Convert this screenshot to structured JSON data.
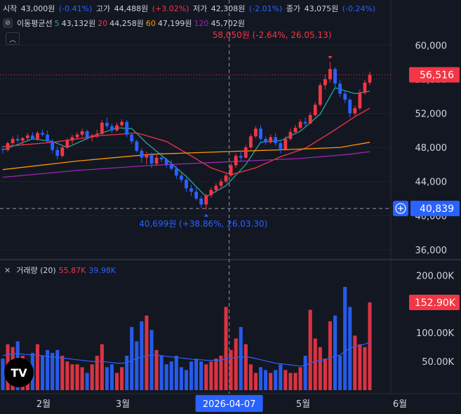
{
  "ohlc_legend": {
    "open_label": "시작",
    "open_value": "43,000원",
    "open_change": "(-0.41%)",
    "high_label": "고가",
    "high_value": "44,488원",
    "high_change": "(+3.02%)",
    "low_label": "저가",
    "low_value": "42,308원",
    "low_change": "(-2.01%)",
    "close_label": "종가",
    "close_value": "43,075원",
    "close_change": "(-0.24%)"
  },
  "ma_legend": {
    "icon": "eye-off-icon",
    "title": "이동평균선",
    "items": [
      {
        "period": "5",
        "value": "43,132원",
        "color": "#26a69a"
      },
      {
        "period": "20",
        "value": "44,258원",
        "color": "#f23645"
      },
      {
        "period": "60",
        "value": "47,199원",
        "color": "#ff9800"
      },
      {
        "period": "120",
        "value": "45,702원",
        "color": "#9c27b0"
      }
    ]
  },
  "volume_legend": {
    "title": "거래량 (20)",
    "value1": "55.87K",
    "value2": "39.98K"
  },
  "tv_logo": "TV",
  "chart_data": [
    {
      "type": "candlestick",
      "ylim": [
        35000,
        62000
      ],
      "y_ticks": [
        "60,000",
        "56,000",
        "52,000",
        "48,000",
        "44,000",
        "40,000",
        "36,000"
      ],
      "y_tick_values": [
        60000,
        56000,
        52000,
        48000,
        44000,
        40000,
        36000
      ],
      "x_ticks": [
        "2월",
        "3월",
        "5월",
        "6월"
      ],
      "crosshair_date": "2026-04-07",
      "crosshair_price": "40,839",
      "last_price": "56,516",
      "high_annotation": "58,050원 (-2.64%, 26.05.13)",
      "low_annotation": "40,699원 (+38.86%, 26.03.30)",
      "colors": {
        "up": "#f23645",
        "down": "#2962ff"
      },
      "candles": [
        [
          47800,
          48200,
          47300,
          47700
        ],
        [
          47700,
          48700,
          47500,
          48500
        ],
        [
          48500,
          49300,
          48200,
          49000
        ],
        [
          49000,
          49500,
          48600,
          48800
        ],
        [
          48800,
          49200,
          48300,
          49100
        ],
        [
          49100,
          49700,
          48700,
          49400
        ],
        [
          49400,
          49800,
          48900,
          49000
        ],
        [
          49000,
          49900,
          48800,
          49700
        ],
        [
          49700,
          50100,
          49300,
          49500
        ],
        [
          49500,
          50000,
          48500,
          48700
        ],
        [
          48700,
          49000,
          47300,
          47700
        ],
        [
          47700,
          48100,
          46600,
          47000
        ],
        [
          47000,
          48300,
          46800,
          48000
        ],
        [
          48000,
          49100,
          47800,
          48800
        ],
        [
          48800,
          49500,
          48400,
          49200
        ],
        [
          49200,
          49800,
          48900,
          49500
        ],
        [
          49500,
          50200,
          49200,
          49900
        ],
        [
          49900,
          50100,
          48900,
          49200
        ],
        [
          49200,
          49600,
          48700,
          49400
        ],
        [
          49400,
          50100,
          49100,
          49600
        ],
        [
          49600,
          51200,
          49400,
          50900
        ],
        [
          50900,
          51500,
          50200,
          50500
        ],
        [
          50500,
          50800,
          49700,
          50000
        ],
        [
          50000,
          50900,
          49800,
          50600
        ],
        [
          50600,
          51300,
          50400,
          51000
        ],
        [
          51000,
          51200,
          49200,
          49500
        ],
        [
          49500,
          49700,
          48400,
          48700
        ],
        [
          48700,
          48900,
          47400,
          47600
        ],
        [
          47600,
          47900,
          46200,
          46800
        ],
        [
          46800,
          47500,
          46000,
          47200
        ],
        [
          47200,
          47400,
          45600,
          46100
        ],
        [
          46100,
          47100,
          45800,
          46800
        ],
        [
          46800,
          47400,
          46300,
          46600
        ],
        [
          46600,
          46800,
          45600,
          46000
        ],
        [
          46000,
          46500,
          45300,
          45500
        ],
        [
          45500,
          45800,
          44300,
          44700
        ],
        [
          44700,
          45100,
          43900,
          44200
        ],
        [
          44200,
          44400,
          42800,
          43200
        ],
        [
          43200,
          43600,
          42300,
          42800
        ],
        [
          42800,
          43300,
          41800,
          42000
        ],
        [
          42000,
          42300,
          40900,
          41300
        ],
        [
          41300,
          42600,
          40699,
          42400
        ],
        [
          42400,
          43300,
          42100,
          43000
        ],
        [
          43000,
          43800,
          42700,
          43500
        ],
        [
          43500,
          44300,
          43100,
          44000
        ],
        [
          44000,
          44900,
          43800,
          44700
        ],
        [
          44700,
          46200,
          44500,
          45900
        ],
        [
          45900,
          47300,
          45600,
          47000
        ],
        [
          47000,
          47600,
          46400,
          46800
        ],
        [
          46800,
          48300,
          46700,
          48000
        ],
        [
          48000,
          49600,
          47800,
          49300
        ],
        [
          49300,
          50500,
          49100,
          50200
        ],
        [
          50200,
          50600,
          48800,
          49000
        ],
        [
          49000,
          49300,
          48300,
          48600
        ],
        [
          48600,
          49500,
          48400,
          49200
        ],
        [
          49200,
          49700,
          48200,
          48500
        ],
        [
          48500,
          48800,
          47300,
          47800
        ],
        [
          47800,
          49300,
          47600,
          49000
        ],
        [
          49000,
          50200,
          48800,
          49800
        ],
        [
          49800,
          50600,
          49600,
          50300
        ],
        [
          50300,
          51300,
          50100,
          51000
        ],
        [
          51000,
          51500,
          50400,
          50800
        ],
        [
          50800,
          52100,
          50700,
          51800
        ],
        [
          51800,
          53300,
          51600,
          53000
        ],
        [
          53000,
          55600,
          52800,
          55300
        ],
        [
          55300,
          56500,
          54800,
          56000
        ],
        [
          56000,
          58050,
          55600,
          57200
        ],
        [
          57200,
          57400,
          55100,
          55500
        ],
        [
          55500,
          55900,
          53900,
          54300
        ],
        [
          54300,
          54700,
          53200,
          53600
        ],
        [
          53600,
          53800,
          51500,
          52000
        ],
        [
          52000,
          52900,
          51700,
          52600
        ],
        [
          52600,
          54800,
          52400,
          54400
        ],
        [
          54400,
          55900,
          54200,
          55600
        ],
        [
          55600,
          56900,
          55300,
          56516
        ]
      ],
      "ma_series": [
        {
          "period": "5",
          "color": "#26a69a",
          "values": [
            [
              0,
              47700
            ],
            [
              6,
              49000
            ],
            [
              10,
              48700
            ],
            [
              13,
              48000
            ],
            [
              18,
              49300
            ],
            [
              23,
              50300
            ],
            [
              26,
              50200
            ],
            [
              29,
              48500
            ],
            [
              33,
              46600
            ],
            [
              37,
              44600
            ],
            [
              41,
              42200
            ],
            [
              45,
              43500
            ],
            [
              49,
              46000
            ],
            [
              52,
              48600
            ],
            [
              56,
              48800
            ],
            [
              60,
              49900
            ],
            [
              64,
              51900
            ],
            [
              67,
              55000
            ],
            [
              71,
              54300
            ],
            [
              74,
              54600
            ]
          ]
        },
        {
          "period": "20",
          "color": "#f23645",
          "values": [
            [
              0,
              48100
            ],
            [
              10,
              48600
            ],
            [
              20,
              49400
            ],
            [
              27,
              49700
            ],
            [
              33,
              48700
            ],
            [
              38,
              47000
            ],
            [
              42,
              45600
            ],
            [
              46,
              44800
            ],
            [
              51,
              45600
            ],
            [
              56,
              46900
            ],
            [
              61,
              47900
            ],
            [
              66,
              49700
            ],
            [
              71,
              51600
            ],
            [
              74,
              52600
            ]
          ]
        },
        {
          "period": "60",
          "color": "#ff9800",
          "values": [
            [
              0,
              45400
            ],
            [
              15,
              46400
            ],
            [
              30,
              47200
            ],
            [
              45,
              47500
            ],
            [
              60,
              47800
            ],
            [
              68,
              48000
            ],
            [
              74,
              48600
            ]
          ]
        },
        {
          "period": "120",
          "color": "#9c27b0",
          "values": [
            [
              0,
              44500
            ],
            [
              15,
              45300
            ],
            [
              30,
              45900
            ],
            [
              45,
              46300
            ],
            [
              60,
              46700
            ],
            [
              70,
              47200
            ],
            [
              74,
              47500
            ]
          ]
        }
      ]
    },
    {
      "type": "bar",
      "title": "거래량 (20)",
      "ylim": [
        0,
        225000
      ],
      "y_ticks": [
        "200.00K",
        "100.00K",
        "50.00K"
      ],
      "y_tick_values": [
        200000,
        100000,
        50000
      ],
      "last_value": "152.90K",
      "values": [
        55000,
        80000,
        75000,
        85000,
        60000,
        50000,
        65000,
        80000,
        60000,
        70000,
        65000,
        70000,
        60000,
        50000,
        45000,
        45000,
        40000,
        30000,
        45000,
        60000,
        80000,
        40000,
        45000,
        30000,
        40000,
        60000,
        110000,
        85000,
        120000,
        130000,
        105000,
        70000,
        60000,
        45000,
        50000,
        60000,
        40000,
        35000,
        50000,
        55000,
        50000,
        45000,
        50000,
        55000,
        60000,
        145000,
        70000,
        90000,
        110000,
        80000,
        45000,
        30000,
        40000,
        35000,
        30000,
        35000,
        45000,
        35000,
        30000,
        30000,
        40000,
        60000,
        140000,
        90000,
        75000,
        55000,
        120000,
        130000,
        60000,
        180000,
        145000,
        95000,
        80000,
        75000,
        152900
      ],
      "ma_values": [
        60000,
        62000,
        63000,
        64000,
        63000,
        62000,
        61000,
        61000,
        60000,
        59000,
        58000,
        57000,
        56000,
        55000,
        54000,
        53000,
        52000,
        51000,
        50000,
        50000,
        50000,
        49000,
        48000,
        47000,
        47000,
        48000,
        52000,
        55000,
        58000,
        60000,
        61000,
        61000,
        60000,
        59000,
        58000,
        57000,
        56000,
        55000,
        54000,
        53000,
        53000,
        52000,
        52000,
        52000,
        52000,
        55000,
        56000,
        57000,
        58000,
        58000,
        57000,
        55000,
        53000,
        51000,
        49000,
        47000,
        46000,
        45000,
        44000,
        43000,
        42000,
        43000,
        47000,
        50000,
        52000,
        53000,
        56000,
        60000,
        61000,
        68000,
        73000,
        76000,
        78000,
        80000,
        84000
      ]
    }
  ]
}
